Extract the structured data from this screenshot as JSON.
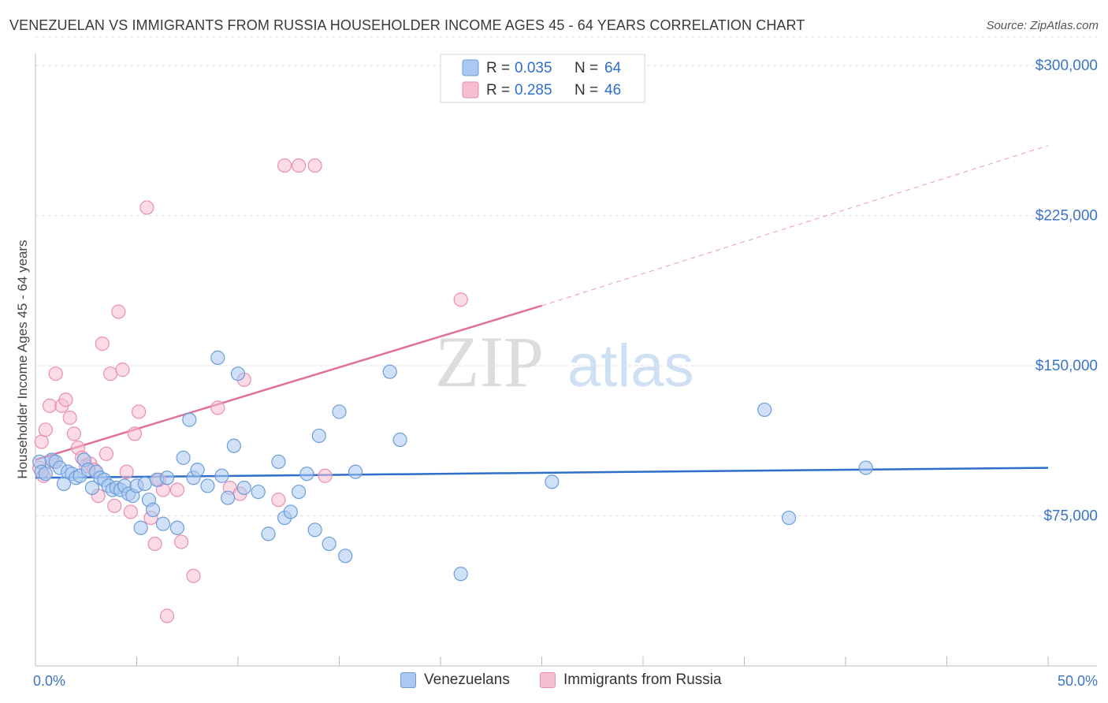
{
  "title": "VENEZUELAN VS IMMIGRANTS FROM RUSSIA HOUSEHOLDER INCOME AGES 45 - 64 YEARS CORRELATION CHART",
  "source": "Source: ZipAtlas.com",
  "watermark": {
    "part1": "ZIP",
    "part2": "atlas"
  },
  "colors": {
    "blue_fill": "#aac8f0",
    "blue_stroke": "#6b9ddb",
    "blue_line": "#2f6fc9",
    "pink_fill": "#f7bdd0",
    "pink_stroke": "#e98fae",
    "pink_line": "#e07098",
    "axis_label": "#3b74c9",
    "grid": "#dddddd"
  },
  "legend_top": {
    "rows": [
      {
        "r_label": "R =",
        "r_value": "0.035",
        "n_label": "N =",
        "n_value": "64"
      },
      {
        "r_label": "R =",
        "r_value": "0.285",
        "n_label": "N =",
        "n_value": "46"
      }
    ]
  },
  "legend_bottom": {
    "series1": "Venezuelans",
    "series2": "Immigrants from Russia"
  },
  "chart_data": {
    "type": "scatter",
    "title": "VENEZUELAN VS IMMIGRANTS FROM RUSSIA HOUSEHOLDER INCOME AGES 45 - 64 YEARS CORRELATION CHART",
    "xlabel": "",
    "ylabel": "Householder Income Ages 45 - 64 years",
    "xlim": [
      0,
      50
    ],
    "ylim": [
      0,
      315000
    ],
    "x_tick_labels": [
      "0.0%",
      "50.0%"
    ],
    "y_ticks": [
      75000,
      150000,
      225000,
      300000
    ],
    "y_tick_labels": [
      "$75,000",
      "$150,000",
      "$225,000",
      "$300,000"
    ],
    "series": [
      {
        "name": "Venezuelans",
        "r": 0.035,
        "n": 64,
        "trend": {
          "x": [
            0,
            50
          ],
          "y": [
            94000,
            99000
          ]
        },
        "points": [
          [
            0.2,
            102000
          ],
          [
            0.3,
            97000
          ],
          [
            0.5,
            96000
          ],
          [
            0.8,
            103000
          ],
          [
            1.0,
            102000
          ],
          [
            1.2,
            99000
          ],
          [
            1.4,
            91000
          ],
          [
            1.6,
            97000
          ],
          [
            1.8,
            96000
          ],
          [
            2.0,
            94000
          ],
          [
            2.2,
            95000
          ],
          [
            2.4,
            103000
          ],
          [
            2.6,
            98000
          ],
          [
            2.8,
            89000
          ],
          [
            3.0,
            97000
          ],
          [
            3.2,
            94000
          ],
          [
            3.4,
            93000
          ],
          [
            3.6,
            90000
          ],
          [
            3.8,
            88000
          ],
          [
            4.0,
            89000
          ],
          [
            4.2,
            88000
          ],
          [
            4.4,
            90000
          ],
          [
            4.6,
            86000
          ],
          [
            4.8,
            85000
          ],
          [
            5.0,
            90000
          ],
          [
            5.2,
            69000
          ],
          [
            5.4,
            91000
          ],
          [
            5.6,
            83000
          ],
          [
            5.8,
            78000
          ],
          [
            6.0,
            93000
          ],
          [
            6.3,
            71000
          ],
          [
            6.5,
            94000
          ],
          [
            7.0,
            69000
          ],
          [
            7.3,
            104000
          ],
          [
            7.6,
            123000
          ],
          [
            7.8,
            94000
          ],
          [
            8.0,
            98000
          ],
          [
            8.5,
            90000
          ],
          [
            9.0,
            154000
          ],
          [
            9.2,
            95000
          ],
          [
            9.5,
            84000
          ],
          [
            9.8,
            110000
          ],
          [
            10.0,
            146000
          ],
          [
            10.3,
            89000
          ],
          [
            11.0,
            87000
          ],
          [
            11.5,
            66000
          ],
          [
            12.0,
            102000
          ],
          [
            12.3,
            74000
          ],
          [
            12.6,
            77000
          ],
          [
            13.0,
            87000
          ],
          [
            13.4,
            96000
          ],
          [
            13.8,
            68000
          ],
          [
            14.0,
            115000
          ],
          [
            14.5,
            61000
          ],
          [
            15.0,
            127000
          ],
          [
            15.3,
            55000
          ],
          [
            15.8,
            97000
          ],
          [
            17.5,
            147000
          ],
          [
            18.0,
            113000
          ],
          [
            21.0,
            46000
          ],
          [
            25.5,
            92000
          ],
          [
            36.0,
            128000
          ],
          [
            37.2,
            74000
          ],
          [
            41.0,
            99000
          ]
        ]
      },
      {
        "name": "Immigrants from Russia",
        "r": 0.285,
        "n": 46,
        "trend": {
          "x": [
            0,
            25
          ],
          "y": [
            103000,
            180000
          ]
        },
        "trend_ext": {
          "x": [
            25,
            50
          ],
          "y": [
            180000,
            260000
          ]
        },
        "points": [
          [
            0.2,
            99000
          ],
          [
            0.3,
            112000
          ],
          [
            0.5,
            118000
          ],
          [
            0.7,
            130000
          ],
          [
            0.9,
            102000
          ],
          [
            1.0,
            146000
          ],
          [
            1.3,
            130000
          ],
          [
            1.5,
            133000
          ],
          [
            1.7,
            124000
          ],
          [
            1.9,
            116000
          ],
          [
            2.1,
            109000
          ],
          [
            2.3,
            104000
          ],
          [
            2.5,
            100000
          ],
          [
            2.7,
            101000
          ],
          [
            2.9,
            98000
          ],
          [
            3.1,
            85000
          ],
          [
            3.3,
            161000
          ],
          [
            3.5,
            106000
          ],
          [
            3.7,
            146000
          ],
          [
            3.9,
            80000
          ],
          [
            4.1,
            177000
          ],
          [
            4.3,
            148000
          ],
          [
            4.5,
            97000
          ],
          [
            4.7,
            77000
          ],
          [
            4.9,
            116000
          ],
          [
            5.1,
            127000
          ],
          [
            5.5,
            229000
          ],
          [
            5.7,
            74000
          ],
          [
            5.9,
            61000
          ],
          [
            6.1,
            93000
          ],
          [
            6.3,
            88000
          ],
          [
            6.5,
            25000
          ],
          [
            7.0,
            88000
          ],
          [
            7.2,
            62000
          ],
          [
            7.8,
            45000
          ],
          [
            9.0,
            129000
          ],
          [
            9.6,
            89000
          ],
          [
            10.1,
            86000
          ],
          [
            10.3,
            143000
          ],
          [
            12.0,
            83000
          ],
          [
            12.3,
            250000
          ],
          [
            13.0,
            250000
          ],
          [
            13.8,
            250000
          ],
          [
            14.3,
            95000
          ],
          [
            21.0,
            183000
          ],
          [
            0.4,
            95000
          ]
        ]
      }
    ]
  }
}
